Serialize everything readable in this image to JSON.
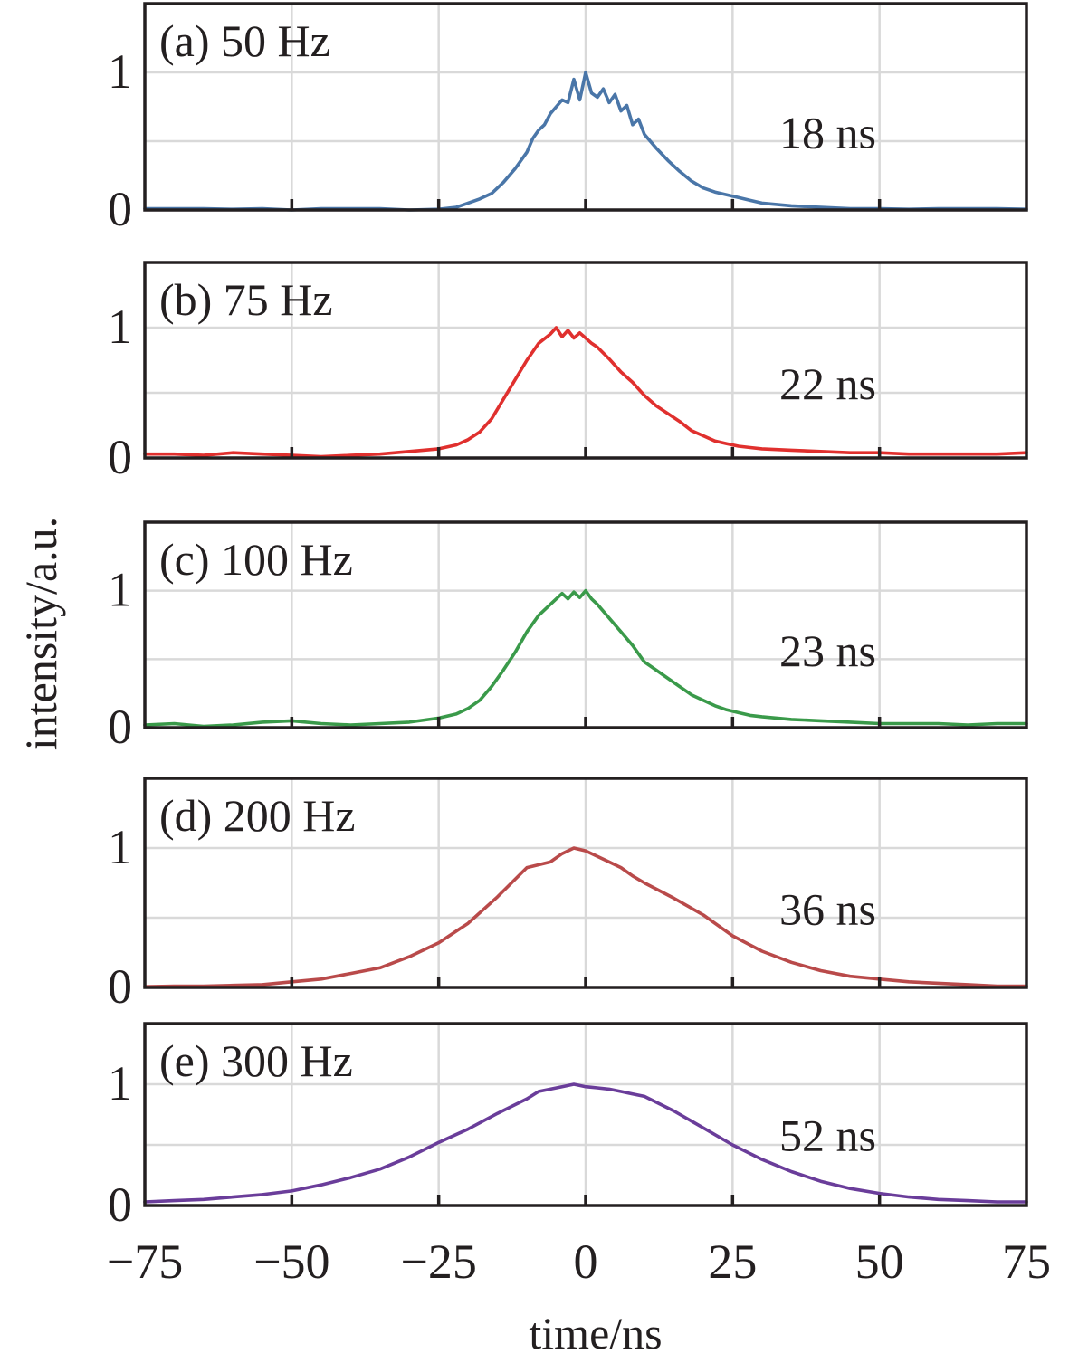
{
  "chart_data": {
    "type": "line",
    "layout": "stacked-panels",
    "xlabel": "time/ns",
    "ylabel": "intensity/a.u.",
    "xlim": [
      -75,
      75
    ],
    "ylim": [
      0,
      1.5
    ],
    "x_ticks": [
      "−75",
      "−50",
      "−25",
      "0",
      "25",
      "50",
      "75"
    ],
    "x_tick_values": [
      -75,
      -50,
      -25,
      0,
      25,
      50,
      75
    ],
    "y_ticks": [
      "0",
      "1"
    ],
    "y_tick_values": [
      0,
      1
    ],
    "grid": true,
    "panels": [
      {
        "label": "(a) 50 Hz",
        "width_text": "18 ns",
        "color": "#4a76a8",
        "x": [
          -75,
          -70,
          -65,
          -60,
          -55,
          -50,
          -45,
          -40,
          -35,
          -30,
          -25,
          -22,
          -20,
          -18,
          -16,
          -14,
          -12,
          -10,
          -9,
          -8,
          -7,
          -6,
          -5,
          -4,
          -3,
          -2,
          -1,
          0,
          1,
          2,
          3,
          4,
          5,
          6,
          7,
          8,
          9,
          10,
          12,
          14,
          16,
          18,
          20,
          22,
          24,
          26,
          28,
          30,
          35,
          40,
          45,
          50,
          55,
          60,
          65,
          70,
          75
        ],
        "values": [
          0.01,
          0.01,
          0.01,
          0.005,
          0.01,
          0.0,
          0.01,
          0.01,
          0.01,
          0.0,
          0.005,
          0.02,
          0.05,
          0.08,
          0.12,
          0.2,
          0.3,
          0.42,
          0.52,
          0.58,
          0.62,
          0.7,
          0.75,
          0.8,
          0.78,
          0.95,
          0.8,
          1.0,
          0.85,
          0.82,
          0.88,
          0.78,
          0.84,
          0.72,
          0.76,
          0.62,
          0.66,
          0.55,
          0.45,
          0.36,
          0.28,
          0.21,
          0.16,
          0.13,
          0.11,
          0.09,
          0.07,
          0.05,
          0.03,
          0.02,
          0.01,
          0.01,
          0.005,
          0.01,
          0.01,
          0.01,
          0.005
        ]
      },
      {
        "label": "(b) 75 Hz",
        "width_text": "22 ns",
        "color": "#e0302e",
        "x": [
          -75,
          -70,
          -65,
          -60,
          -55,
          -50,
          -45,
          -40,
          -35,
          -30,
          -25,
          -22,
          -20,
          -18,
          -16,
          -14,
          -12,
          -10,
          -8,
          -6,
          -5,
          -4,
          -3,
          -2,
          -1,
          0,
          1,
          2,
          4,
          6,
          8,
          10,
          12,
          14,
          16,
          18,
          20,
          22,
          24,
          26,
          28,
          30,
          35,
          40,
          45,
          50,
          55,
          60,
          65,
          70,
          75
        ],
        "values": [
          0.03,
          0.03,
          0.02,
          0.04,
          0.03,
          0.02,
          0.01,
          0.02,
          0.03,
          0.05,
          0.07,
          0.1,
          0.14,
          0.2,
          0.3,
          0.45,
          0.6,
          0.75,
          0.88,
          0.95,
          1.0,
          0.93,
          0.98,
          0.92,
          0.96,
          0.92,
          0.88,
          0.85,
          0.76,
          0.66,
          0.58,
          0.48,
          0.4,
          0.34,
          0.28,
          0.21,
          0.17,
          0.13,
          0.11,
          0.09,
          0.08,
          0.07,
          0.06,
          0.05,
          0.04,
          0.04,
          0.03,
          0.03,
          0.03,
          0.03,
          0.04
        ]
      },
      {
        "label": "(c) 100 Hz",
        "width_text": "23 ns",
        "color": "#3a9a4a",
        "x": [
          -75,
          -70,
          -65,
          -60,
          -55,
          -50,
          -45,
          -40,
          -35,
          -30,
          -25,
          -22,
          -20,
          -18,
          -16,
          -14,
          -12,
          -10,
          -8,
          -6,
          -4,
          -3,
          -2,
          -1,
          0,
          1,
          2,
          4,
          6,
          8,
          10,
          12,
          14,
          16,
          18,
          20,
          22,
          24,
          26,
          28,
          30,
          35,
          40,
          45,
          50,
          55,
          60,
          65,
          70,
          75
        ],
        "values": [
          0.02,
          0.03,
          0.01,
          0.02,
          0.04,
          0.05,
          0.03,
          0.02,
          0.03,
          0.04,
          0.07,
          0.1,
          0.14,
          0.2,
          0.3,
          0.42,
          0.55,
          0.7,
          0.82,
          0.9,
          0.98,
          0.94,
          0.99,
          0.95,
          1.0,
          0.94,
          0.9,
          0.8,
          0.7,
          0.6,
          0.48,
          0.42,
          0.36,
          0.3,
          0.24,
          0.2,
          0.16,
          0.13,
          0.11,
          0.09,
          0.08,
          0.06,
          0.05,
          0.04,
          0.03,
          0.03,
          0.03,
          0.02,
          0.03,
          0.03
        ]
      },
      {
        "label": "(d) 200 Hz",
        "width_text": "36 ns",
        "color": "#b94a4a",
        "x": [
          -75,
          -70,
          -65,
          -60,
          -55,
          -50,
          -45,
          -40,
          -35,
          -30,
          -25,
          -20,
          -15,
          -10,
          -8,
          -6,
          -4,
          -2,
          0,
          2,
          4,
          6,
          8,
          10,
          15,
          20,
          25,
          30,
          35,
          40,
          45,
          50,
          55,
          60,
          65,
          70,
          75
        ],
        "values": [
          0.005,
          0.01,
          0.01,
          0.015,
          0.02,
          0.04,
          0.06,
          0.1,
          0.14,
          0.22,
          0.32,
          0.46,
          0.65,
          0.86,
          0.88,
          0.9,
          0.96,
          1.0,
          0.98,
          0.94,
          0.9,
          0.86,
          0.8,
          0.75,
          0.64,
          0.52,
          0.37,
          0.26,
          0.18,
          0.12,
          0.08,
          0.06,
          0.04,
          0.03,
          0.02,
          0.01,
          0.01
        ]
      },
      {
        "label": "(e) 300 Hz",
        "width_text": "52 ns",
        "color": "#6a3d9a",
        "x": [
          -75,
          -70,
          -65,
          -60,
          -55,
          -50,
          -45,
          -40,
          -35,
          -30,
          -25,
          -20,
          -15,
          -10,
          -8,
          -6,
          -4,
          -2,
          0,
          2,
          4,
          6,
          8,
          10,
          15,
          20,
          25,
          30,
          35,
          40,
          45,
          50,
          55,
          60,
          65,
          70,
          75
        ],
        "values": [
          0.03,
          0.04,
          0.05,
          0.07,
          0.09,
          0.12,
          0.17,
          0.23,
          0.3,
          0.4,
          0.52,
          0.63,
          0.76,
          0.88,
          0.94,
          0.96,
          0.98,
          1.0,
          0.98,
          0.97,
          0.96,
          0.94,
          0.92,
          0.9,
          0.78,
          0.64,
          0.5,
          0.38,
          0.28,
          0.2,
          0.14,
          0.1,
          0.07,
          0.05,
          0.04,
          0.03,
          0.03
        ]
      }
    ]
  }
}
